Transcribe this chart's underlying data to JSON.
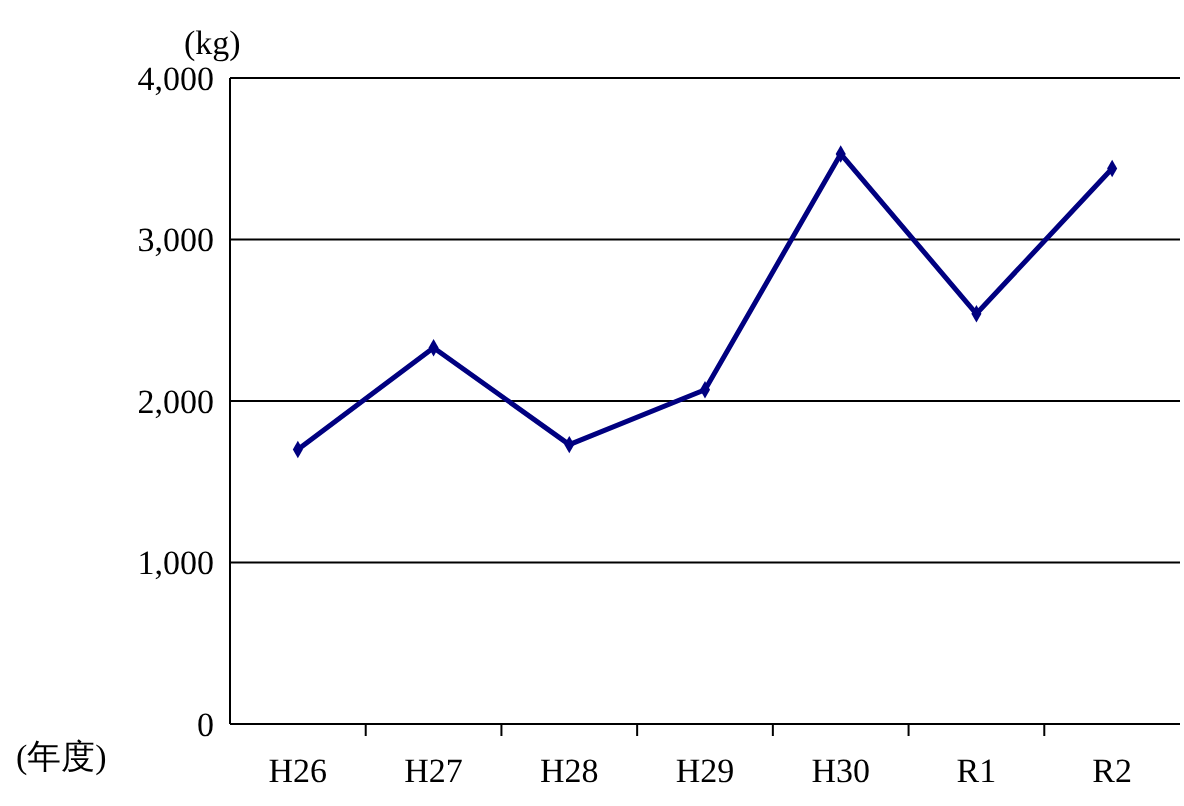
{
  "chart_data": {
    "type": "line",
    "xlabel": "(年度)",
    "ylabel": "(kg)",
    "categories": [
      "H26",
      "H27",
      "H28",
      "H29",
      "H30",
      "R1",
      "R2"
    ],
    "series": [
      {
        "color": "#000080",
        "values": [
          1700,
          2330,
          1730,
          2070,
          3530,
          2540,
          3440
        ]
      }
    ],
    "ylim": [
      0,
      4000
    ],
    "yticks": [
      {
        "value": 0,
        "label": "0"
      },
      {
        "value": 1000,
        "label": "1,000"
      },
      {
        "value": 2000,
        "label": "2,000"
      },
      {
        "value": 3000,
        "label": "3,000"
      },
      {
        "value": 4000,
        "label": "4,000"
      }
    ],
    "grid": "y",
    "marker": "diamond",
    "line_style": "solid"
  }
}
